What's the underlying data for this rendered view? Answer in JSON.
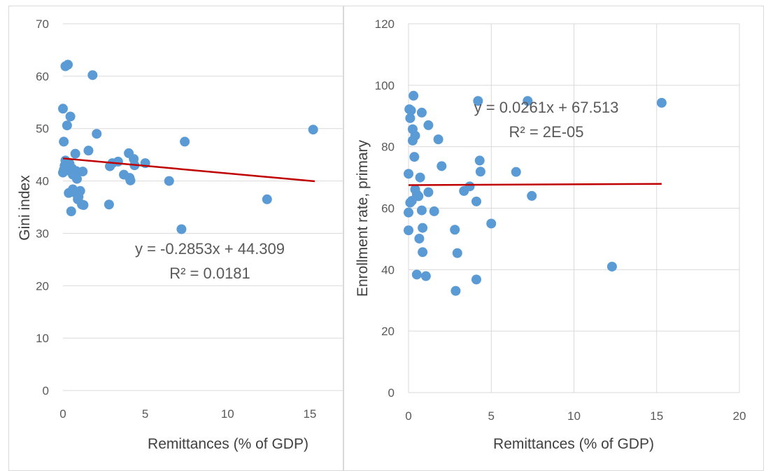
{
  "chart_data": [
    {
      "type": "scatter",
      "title": "",
      "xlabel": "Remittances (% of GDP)",
      "ylabel": "Gini index",
      "xlim": [
        0,
        17
      ],
      "ylim": [
        0,
        70
      ],
      "x_ticks": [
        0,
        5,
        10,
        15
      ],
      "y_ticks": [
        0,
        10,
        20,
        30,
        40,
        50,
        60,
        70
      ],
      "grid": "horizontal",
      "legend": "none",
      "point_color": "#5b9bd5",
      "trendline": {
        "slope": -0.2853,
        "intercept": 44.309,
        "x_range": [
          0,
          15.3
        ],
        "color": "#c00000"
      },
      "annotations": {
        "equation": "y = -0.2853x + 44.309",
        "r2": "R² = 0.0181"
      },
      "points": [
        [
          0.3,
          62.2
        ],
        [
          0.15,
          61.9
        ],
        [
          1.8,
          60.2
        ],
        [
          0.0,
          53.8
        ],
        [
          0.45,
          52.3
        ],
        [
          0.25,
          50.6
        ],
        [
          2.05,
          49.0
        ],
        [
          0.05,
          47.5
        ],
        [
          7.4,
          47.5
        ],
        [
          15.2,
          49.8
        ],
        [
          1.55,
          45.8
        ],
        [
          0.75,
          45.2
        ],
        [
          4.0,
          45.3
        ],
        [
          4.3,
          44.2
        ],
        [
          0.15,
          43.9
        ],
        [
          0.4,
          43.3
        ],
        [
          3.35,
          43.7
        ],
        [
          3.0,
          43.4
        ],
        [
          5.0,
          43.4
        ],
        [
          2.85,
          42.8
        ],
        [
          4.35,
          43.0
        ],
        [
          0.1,
          42.9
        ],
        [
          0.55,
          42.4
        ],
        [
          0.05,
          42.1
        ],
        [
          0.35,
          42.0
        ],
        [
          0.8,
          41.9
        ],
        [
          1.2,
          41.8
        ],
        [
          0.0,
          41.6
        ],
        [
          0.6,
          41.2
        ],
        [
          3.7,
          41.2
        ],
        [
          4.05,
          40.6
        ],
        [
          4.1,
          40.1
        ],
        [
          0.85,
          40.4
        ],
        [
          6.45,
          40.0
        ],
        [
          0.6,
          38.4
        ],
        [
          1.05,
          38.1
        ],
        [
          0.35,
          37.7
        ],
        [
          0.8,
          37.6
        ],
        [
          0.95,
          37.0
        ],
        [
          0.9,
          36.5
        ],
        [
          12.4,
          36.5
        ],
        [
          1.15,
          35.5
        ],
        [
          1.25,
          35.4
        ],
        [
          2.8,
          35.5
        ],
        [
          0.5,
          34.2
        ],
        [
          7.2,
          30.8
        ]
      ]
    },
    {
      "type": "scatter",
      "title": "",
      "xlabel": "Remittances (% of GDP)",
      "ylabel": "Enrollment rate, primary",
      "xlim": [
        0,
        20
      ],
      "ylim": [
        0,
        120
      ],
      "x_ticks": [
        0,
        5,
        10,
        15,
        20
      ],
      "y_ticks": [
        0,
        20,
        40,
        60,
        80,
        100,
        120
      ],
      "grid": "both",
      "legend": "none",
      "point_color": "#5b9bd5",
      "trendline": {
        "slope": 0.0261,
        "intercept": 67.513,
        "x_range": [
          0,
          15.3
        ],
        "color": "#c00000"
      },
      "annotations": {
        "equation": "y = 0.0261x + 67.513",
        "r2": "R² = 2E-05"
      },
      "points": [
        [
          0.3,
          96.6
        ],
        [
          4.2,
          94.9
        ],
        [
          7.2,
          94.9
        ],
        [
          15.3,
          94.3
        ],
        [
          0.05,
          92.2
        ],
        [
          0.15,
          91.8
        ],
        [
          0.8,
          91.1
        ],
        [
          0.1,
          89.3
        ],
        [
          1.2,
          87.0
        ],
        [
          0.25,
          85.7
        ],
        [
          0.4,
          83.6
        ],
        [
          0.25,
          82.0
        ],
        [
          1.8,
          82.4
        ],
        [
          0.35,
          76.7
        ],
        [
          4.3,
          75.5
        ],
        [
          2.0,
          73.7
        ],
        [
          4.35,
          71.9
        ],
        [
          6.5,
          71.8
        ],
        [
          0.0,
          71.2
        ],
        [
          0.7,
          70.0
        ],
        [
          3.7,
          67.1
        ],
        [
          0.4,
          66.1
        ],
        [
          3.35,
          65.6
        ],
        [
          1.2,
          65.2
        ],
        [
          0.5,
          64.5
        ],
        [
          7.45,
          64.0
        ],
        [
          0.6,
          63.9
        ],
        [
          0.2,
          62.4
        ],
        [
          0.1,
          61.8
        ],
        [
          4.1,
          62.2
        ],
        [
          0.8,
          59.3
        ],
        [
          1.55,
          59.0
        ],
        [
          0.0,
          58.6
        ],
        [
          5.0,
          55.0
        ],
        [
          0.85,
          53.6
        ],
        [
          2.8,
          53.0
        ],
        [
          0.0,
          52.8
        ],
        [
          0.65,
          50.1
        ],
        [
          0.85,
          45.7
        ],
        [
          2.95,
          45.4
        ],
        [
          12.3,
          41.0
        ],
        [
          0.5,
          38.4
        ],
        [
          1.05,
          37.9
        ],
        [
          4.1,
          36.8
        ],
        [
          2.85,
          33.1
        ]
      ]
    }
  ]
}
